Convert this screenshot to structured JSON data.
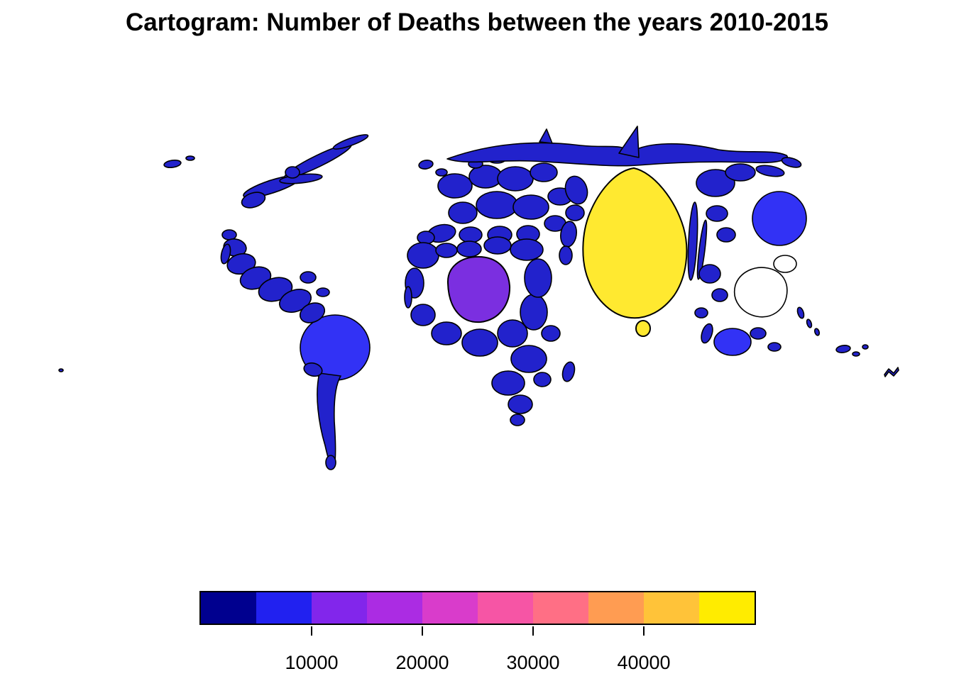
{
  "title": "Cartogram: Number of Deaths between the years 2010-2015",
  "colors": {
    "background": "#FFFFFF",
    "outline": "#000000",
    "country": "#2222CC",
    "country_bright": "#3232F5",
    "purple_region": "#7B2FE0",
    "yellow_region": "#FFE930",
    "no_data": "#FFFFFF"
  },
  "chart_data": {
    "type": "cartogram",
    "title": "Cartogram: Number of Deaths between the years 2010-2015",
    "description": "World map cartogram; country areas are distorted and fill color encodes the number of deaths between 2010 and 2015. Most countries are dark blue (low values); one very large yellow region near the center-right has the highest value, one large purple round region in West Africa is intermediate, and a few regions are brighter blue.",
    "colorbar": {
      "orientation": "horizontal",
      "min": 0,
      "max": 50000,
      "segment_size": 5000,
      "tick_values": [
        10000,
        20000,
        30000,
        40000
      ],
      "tick_labels": [
        "10000",
        "20000",
        "30000",
        "40000"
      ],
      "palette": [
        "#00008F",
        "#2121F0",
        "#8226EB",
        "#AB2CE3",
        "#D93CCB",
        "#F655A5",
        "#FF6F85",
        "#FF9C52",
        "#FFC339",
        "#FFEC00"
      ],
      "legend_position": "bottom"
    },
    "regions": [
      {
        "region": "most-countries (dark blue)",
        "approx_value": 2500,
        "fill": "#2222CC"
      },
      {
        "region": "large-distorted-region-center-right (yellow)",
        "approx_value": 47000,
        "fill": "#FFE930"
      },
      {
        "region": "small-satellite-region-below-yellow (yellow)",
        "approx_value": 47000,
        "fill": "#FFE930"
      },
      {
        "region": "large-round-region-west-africa (purple)",
        "approx_value": 16000,
        "fill": "#7B2FE0"
      },
      {
        "region": "round-region-east-asia (bright blue)",
        "approx_value": 7500,
        "fill": "#3232F5"
      },
      {
        "region": "region-south-america-north (bright blue)",
        "approx_value": 7500,
        "fill": "#3232F5"
      },
      {
        "region": "region-southeast-asia-island (bright blue)",
        "approx_value": 7500,
        "fill": "#3232F5"
      },
      {
        "region": "outlined-regions-no-fill",
        "approx_value": null,
        "fill": "#FFFFFF"
      }
    ],
    "grid": false
  }
}
